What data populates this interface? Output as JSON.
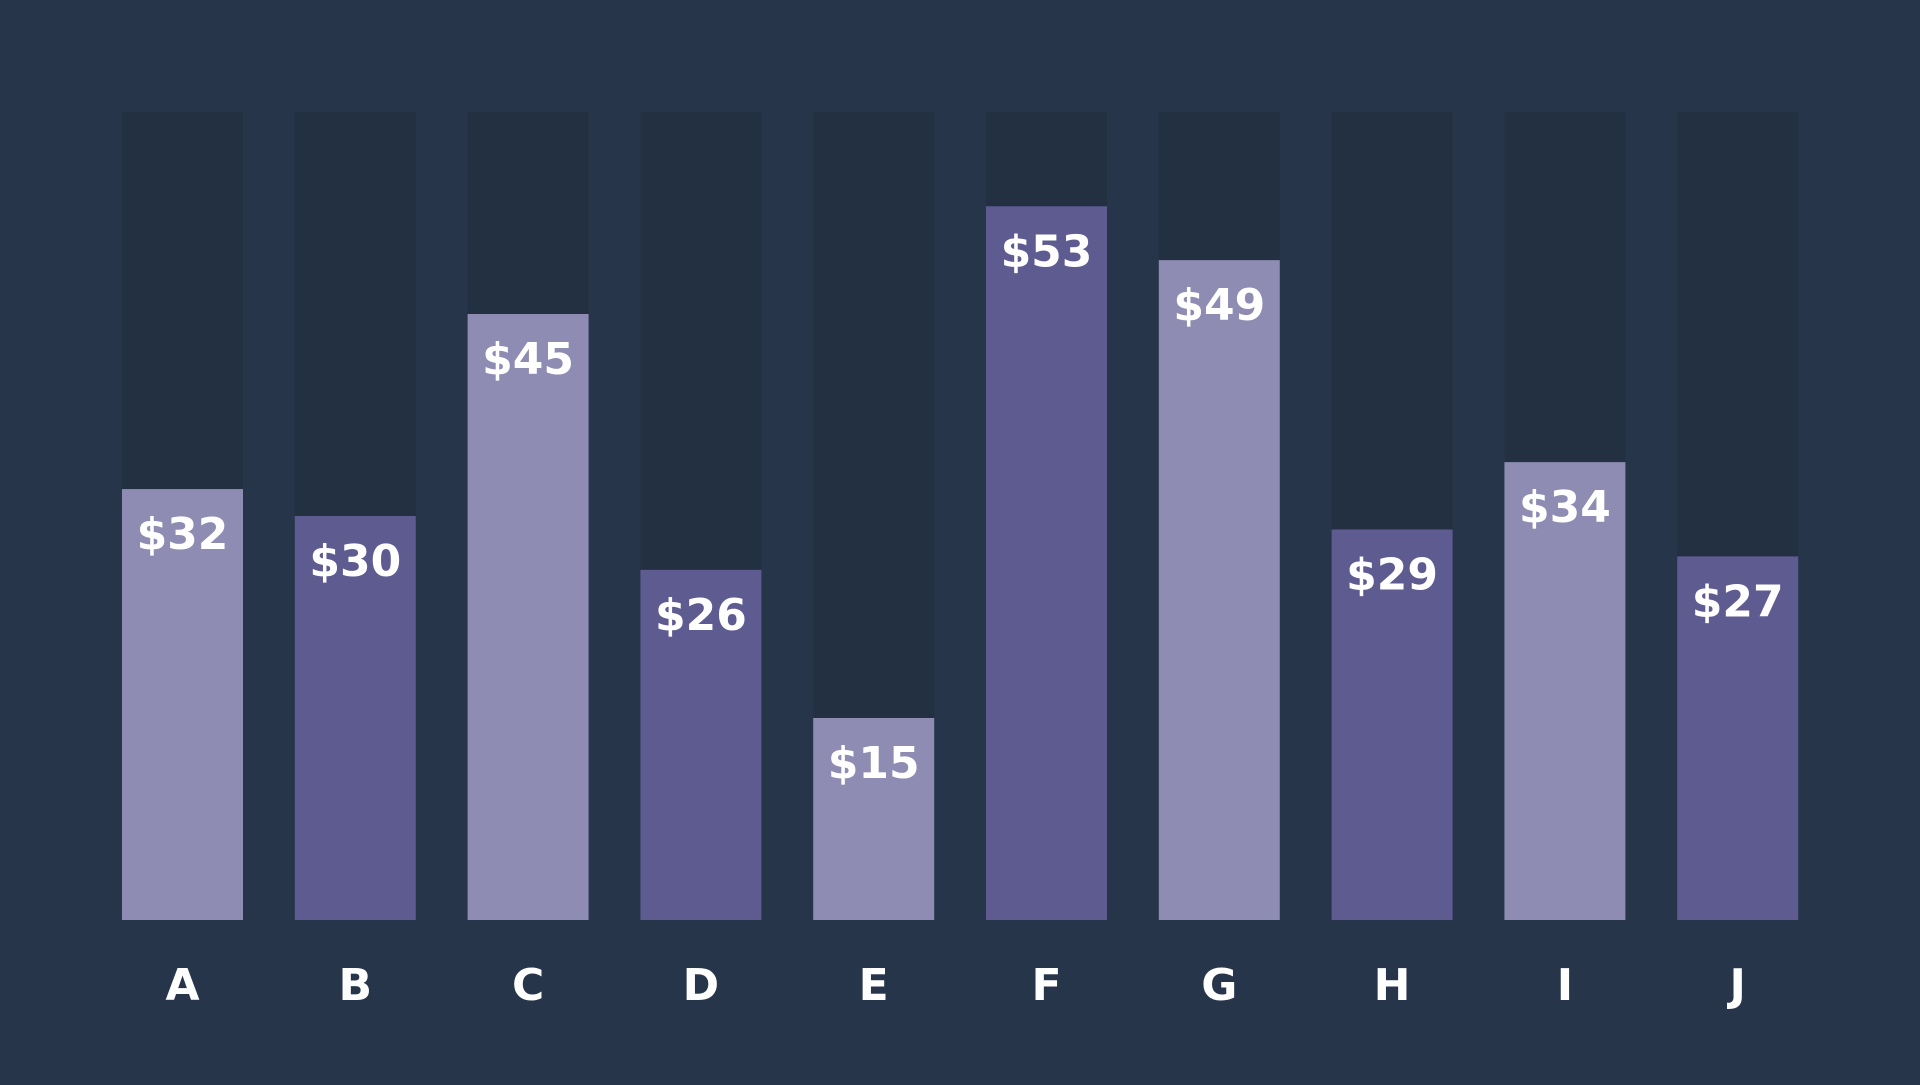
{
  "chart_data": {
    "type": "bar",
    "categories": [
      "A",
      "B",
      "C",
      "D",
      "E",
      "F",
      "G",
      "H",
      "I",
      "J"
    ],
    "values": [
      32,
      30,
      45,
      26,
      15,
      53,
      49,
      29,
      34,
      27
    ],
    "value_labels": [
      "$32",
      "$30",
      "$45",
      "$26",
      "$15",
      "$53",
      "$49",
      "$29",
      "$34",
      "$27"
    ],
    "ylim": [
      0,
      60
    ],
    "grid": false,
    "legend": "none"
  },
  "colors": {
    "background": "#27354b",
    "track": "#223042",
    "bar_light": "#8e8cb2",
    "bar_dark": "#5e5b91",
    "text": "#ffffff"
  },
  "bar_color_sequence": [
    "light",
    "dark",
    "light",
    "dark",
    "light",
    "dark",
    "light",
    "dark",
    "light",
    "dark"
  ]
}
